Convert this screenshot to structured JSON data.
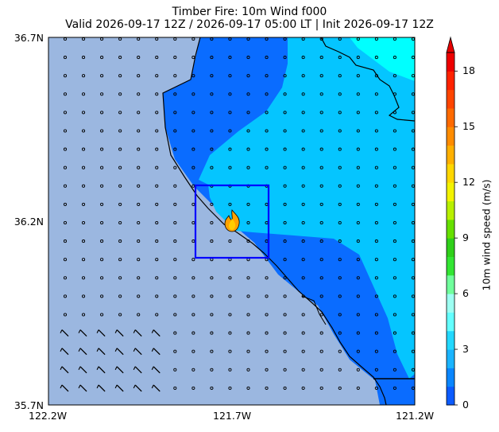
{
  "title_line1": "Timber Fire: 10m Wind f000",
  "title_line2": "Valid 2026-09-17 12Z / 2026-09-17 05:00 LT | Init 2026-09-17 12Z",
  "axes": {
    "y_ticks": [
      "36.7N",
      "36.2N",
      "35.7N"
    ],
    "x_ticks": [
      "122.2W",
      "121.7W",
      "121.2W"
    ]
  },
  "colorbar": {
    "label": "10m wind speed (m/s)",
    "ticks": [
      "0",
      "3",
      "6",
      "9",
      "12",
      "15",
      "18"
    ],
    "colors": [
      "#0b5bff",
      "#0a86ff",
      "#1ab4ff",
      "#22d8ff",
      "#63ffff",
      "#9dfff2",
      "#70ff9c",
      "#33e633",
      "#2fd01a",
      "#66e000",
      "#b8f000",
      "#f3f300",
      "#ffd700",
      "#ffb000",
      "#ff8c00",
      "#ff6a00",
      "#ff4500",
      "#ff2200",
      "#ee0000"
    ],
    "max": 19
  },
  "map": {
    "lat_range": [
      35.7,
      36.7
    ],
    "lon_range": [
      -122.2,
      -121.2
    ],
    "fire_name": "Timber Fire",
    "fire_icon": "flame-icon",
    "ocean_color": "#9bb7e0",
    "colors": {
      "low": "#0a6cff",
      "mid": "#05c5ff",
      "high": "#00ffff",
      "box": "#0000ff"
    }
  }
}
